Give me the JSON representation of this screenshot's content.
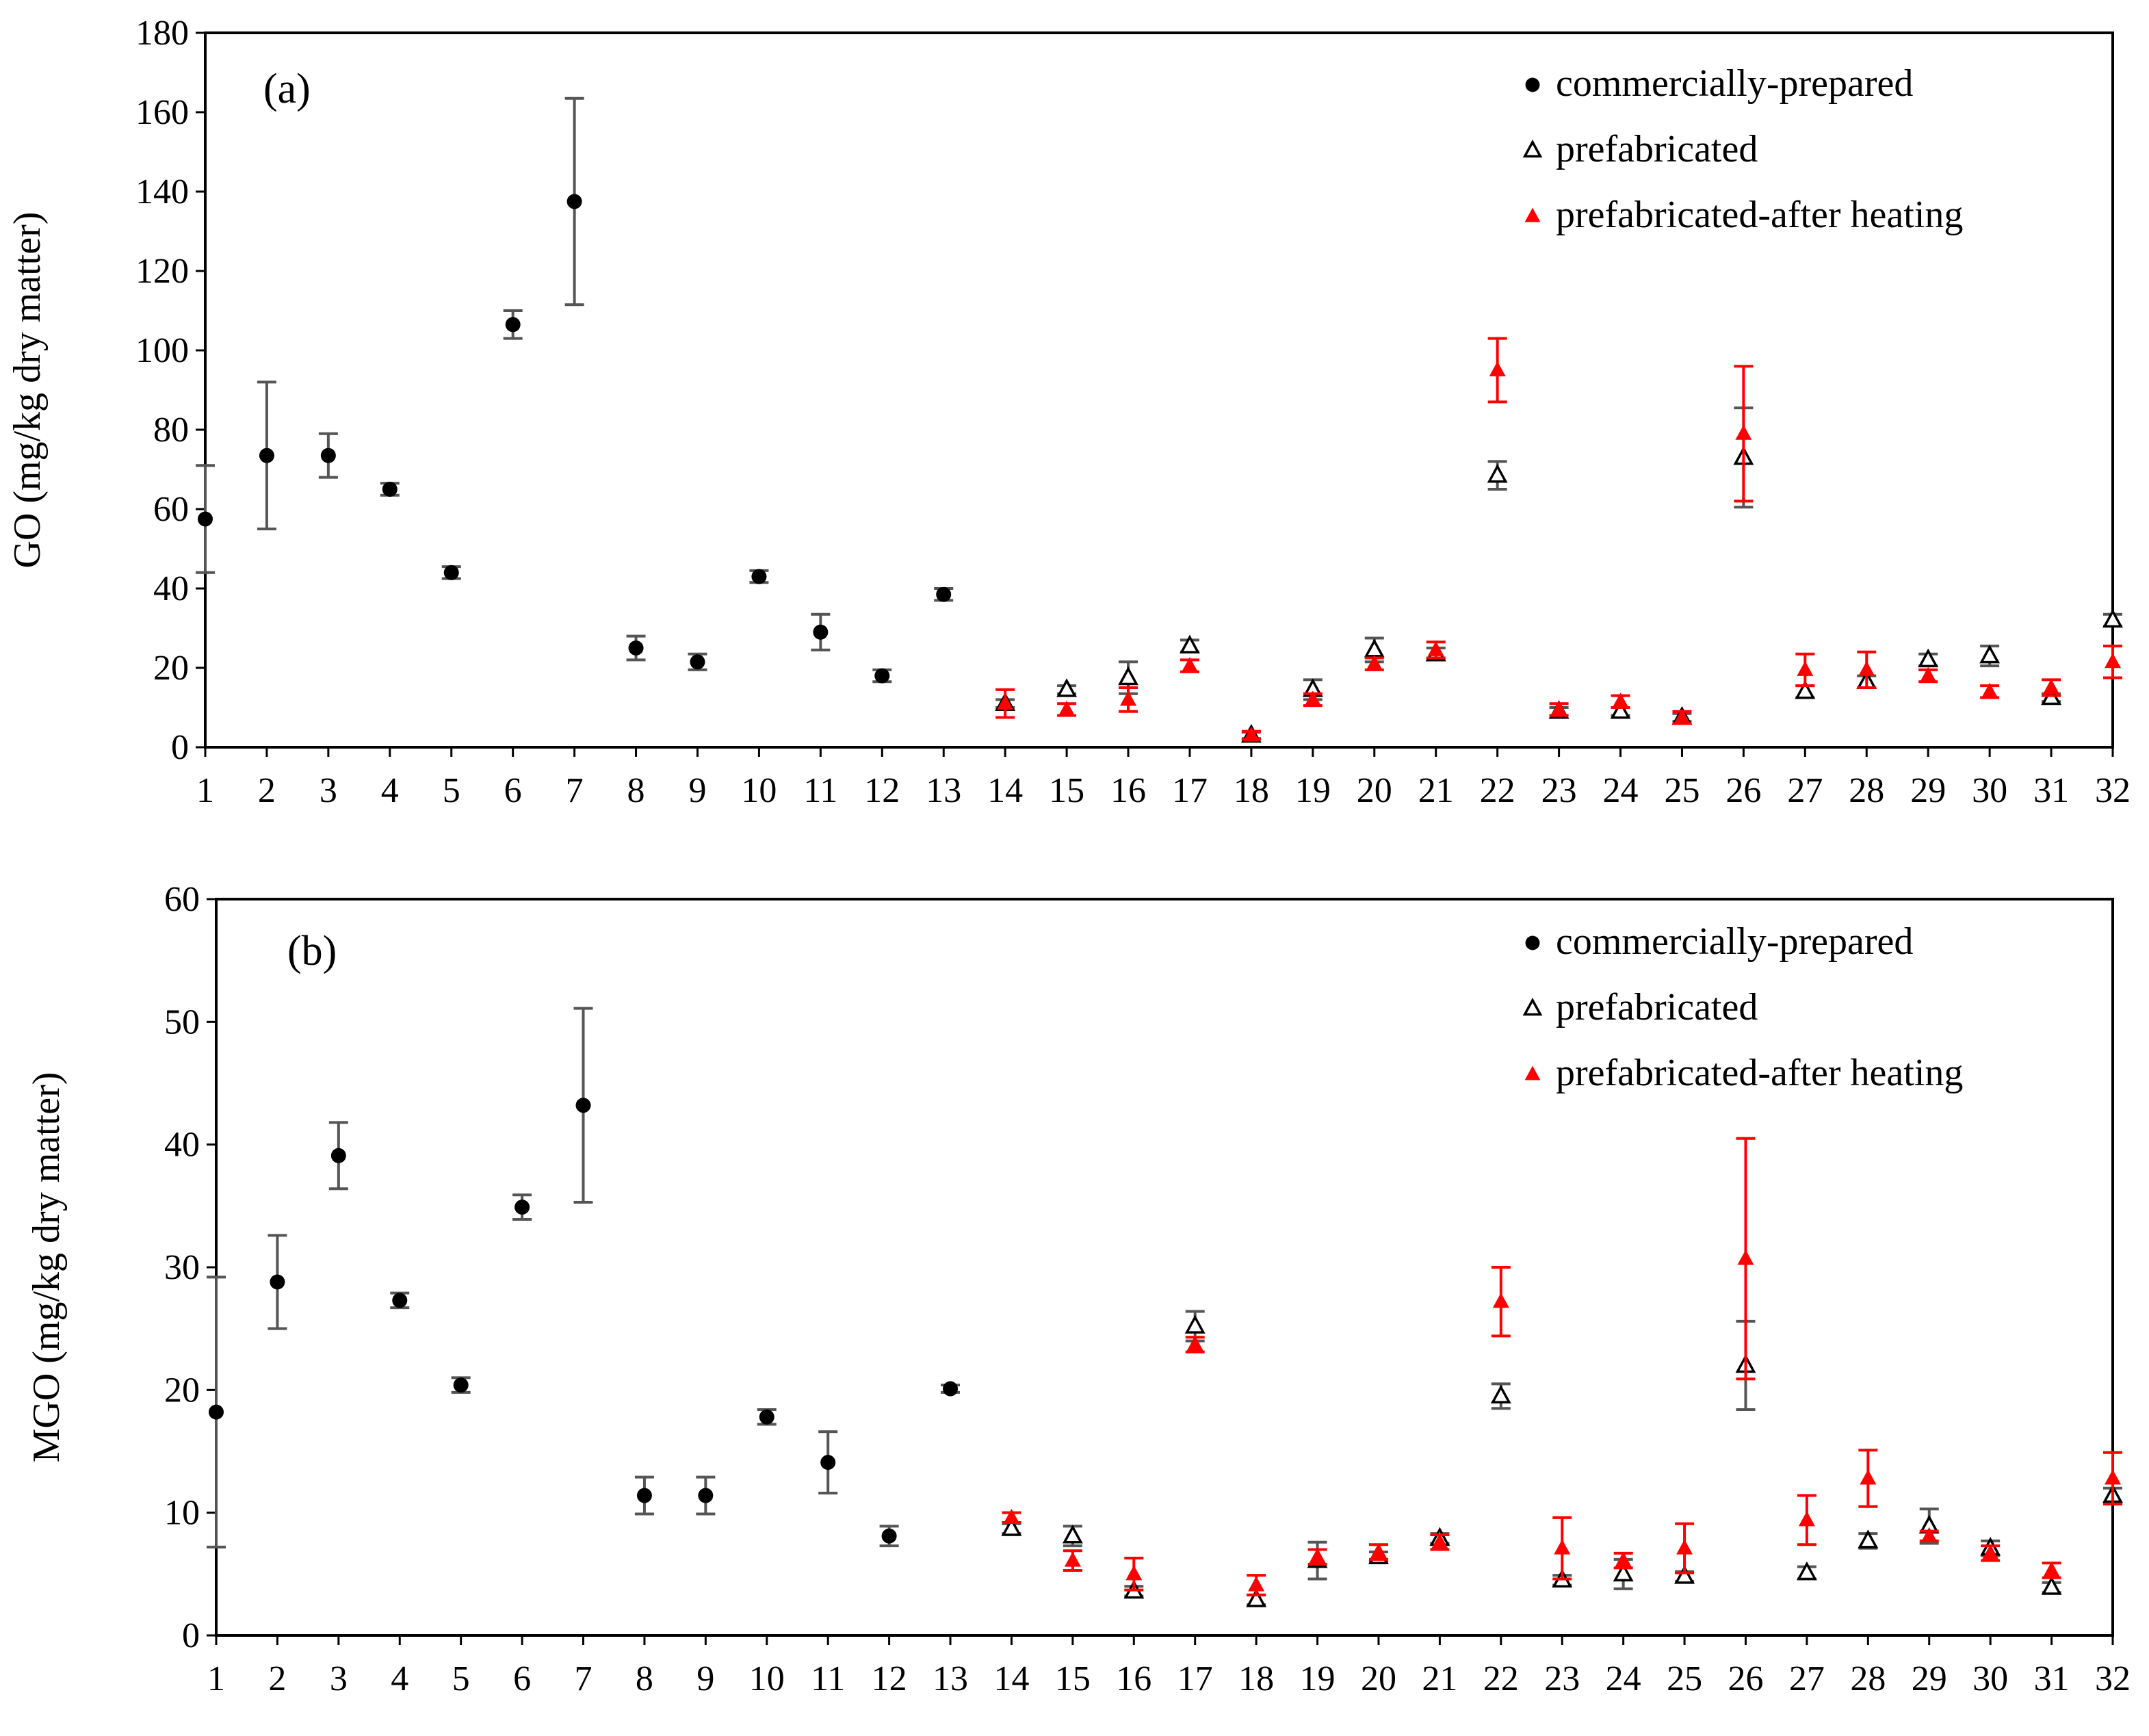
{
  "colors": {
    "commercial": "#000000",
    "prefab": "#000000",
    "heated": "#ff0000",
    "errorbar_black": "#555555",
    "errorbar_red": "#ff0000"
  },
  "chart_data": [
    {
      "type": "scatter",
      "panel_label": "(a)",
      "ylabel": "GO (mg/kg dry matter)",
      "xlabel": "",
      "ylim": [
        0,
        180
      ],
      "yticks": [
        0,
        20,
        40,
        60,
        80,
        100,
        120,
        140,
        160,
        180
      ],
      "categories": [
        "1",
        "2",
        "3",
        "4",
        "5",
        "6",
        "7",
        "8",
        "9",
        "10",
        "11",
        "12",
        "13",
        "14",
        "15",
        "16",
        "17",
        "18",
        "19",
        "20",
        "21",
        "22",
        "23",
        "24",
        "25",
        "26",
        "27",
        "28",
        "29",
        "30",
        "31",
        "32"
      ],
      "legend": [
        "commercially-prepared",
        "prefabricated",
        "prefabricated-after heating"
      ],
      "series": [
        {
          "name": "commercially-prepared",
          "marker": "circle",
          "x": [
            1,
            2,
            3,
            4,
            5,
            6,
            7,
            8,
            9,
            10,
            11,
            12,
            13
          ],
          "values": [
            57.5,
            73.5,
            73.5,
            65,
            44,
            106.5,
            137.5,
            25,
            21.5,
            43,
            29,
            18,
            38.5
          ],
          "errors": [
            13.5,
            18.5,
            5.5,
            1.5,
            1.5,
            3.5,
            26,
            3,
            2,
            1.5,
            4.5,
            1.5,
            1.5
          ]
        },
        {
          "name": "prefabricated",
          "marker": "open-triangle",
          "x": [
            14,
            15,
            16,
            17,
            18,
            19,
            20,
            21,
            22,
            23,
            24,
            25,
            26,
            27,
            28,
            29,
            30,
            31,
            32
          ],
          "values": [
            11,
            14.5,
            17.5,
            25.5,
            3,
            14.5,
            24.5,
            23.5,
            68.5,
            9,
            9,
            7.5,
            73,
            14,
            16.5,
            22,
            23,
            12.5,
            32
          ],
          "errors": [
            1,
            1,
            4,
            1.5,
            0.8,
            2.5,
            3,
            1.5,
            3.5,
            1,
            1,
            1,
            12.5,
            1.5,
            1.5,
            1.5,
            2.5,
            1,
            1.5
          ]
        },
        {
          "name": "prefabricated-after heating",
          "marker": "filled-triangle",
          "x": [
            14,
            15,
            16,
            17,
            18,
            19,
            20,
            21,
            22,
            23,
            24,
            25,
            26,
            27,
            28,
            29,
            30,
            31,
            32
          ],
          "values": [
            11,
            9.5,
            12,
            20.5,
            3,
            12,
            21,
            24.5,
            95,
            9.5,
            11.5,
            7.5,
            79,
            19.5,
            19.5,
            18,
            14,
            15,
            21.5
          ],
          "errors": [
            3.5,
            1.5,
            3,
            1.5,
            1,
            1.5,
            1.5,
            2,
            8,
            1.5,
            1.5,
            1.5,
            17,
            4,
            4.5,
            1.5,
            1.5,
            2,
            4
          ]
        }
      ]
    },
    {
      "type": "scatter",
      "panel_label": "(b)",
      "ylabel": "MGO (mg/kg dry matter)",
      "xlabel": "",
      "ylim": [
        0,
        60
      ],
      "yticks": [
        0,
        10,
        20,
        30,
        40,
        50,
        60
      ],
      "categories": [
        "1",
        "2",
        "3",
        "4",
        "5",
        "6",
        "7",
        "8",
        "9",
        "10",
        "11",
        "12",
        "13",
        "14",
        "15",
        "16",
        "17",
        "18",
        "19",
        "20",
        "21",
        "22",
        "23",
        "24",
        "25",
        "26",
        "27",
        "28",
        "29",
        "30",
        "31",
        "32"
      ],
      "legend": [
        "commercially-prepared",
        "prefabricated",
        "prefabricated-after heating"
      ],
      "series": [
        {
          "name": "commercially-prepared",
          "marker": "circle",
          "x": [
            1,
            2,
            3,
            4,
            5,
            6,
            7,
            8,
            9,
            10,
            11,
            12,
            13
          ],
          "values": [
            18.2,
            28.8,
            39.1,
            27.3,
            20.4,
            34.9,
            43.2,
            11.4,
            11.4,
            17.8,
            14.1,
            8.1,
            20.1
          ],
          "errors": [
            11,
            3.8,
            2.7,
            0.6,
            0.6,
            1,
            7.9,
            1.5,
            1.5,
            0.6,
            2.5,
            0.8,
            0.3
          ]
        },
        {
          "name": "prefabricated",
          "marker": "open-triangle",
          "x": [
            14,
            15,
            16,
            17,
            18,
            19,
            20,
            21,
            22,
            23,
            24,
            25,
            26,
            27,
            28,
            29,
            30,
            31,
            32
          ],
          "values": [
            8.7,
            8.1,
            3.6,
            25.2,
            2.9,
            6.1,
            6.4,
            7.9,
            19.5,
            4.5,
            5,
            4.8,
            22,
            5.1,
            7.7,
            8.9,
            7.1,
            3.9,
            11.4
          ],
          "errors": [
            0.4,
            0.8,
            0.4,
            1.2,
            0.4,
            1.5,
            0.4,
            0.4,
            1,
            0.4,
            1.2,
            0.4,
            3.6,
            0.5,
            0.6,
            1.4,
            0.6,
            0.4,
            0.6
          ]
        },
        {
          "name": "prefabricated-after heating",
          "marker": "filled-triangle",
          "x": [
            14,
            15,
            16,
            17,
            18,
            19,
            20,
            21,
            22,
            23,
            24,
            25,
            26,
            27,
            28,
            29,
            30,
            31,
            32
          ],
          "values": [
            9.6,
            6.1,
            5,
            23.7,
            4.1,
            6.4,
            6.8,
            7.6,
            27.2,
            7.1,
            6.1,
            7.1,
            30.7,
            9.4,
            12.8,
            8.1,
            6.7,
            5.3,
            12.8
          ],
          "errors": [
            0.4,
            0.8,
            1.3,
            0.6,
            0.8,
            0.6,
            0.6,
            0.6,
            2.8,
            2.5,
            0.6,
            2,
            9.8,
            2,
            2.3,
            0.4,
            0.6,
            0.6,
            2.1
          ]
        }
      ]
    }
  ]
}
